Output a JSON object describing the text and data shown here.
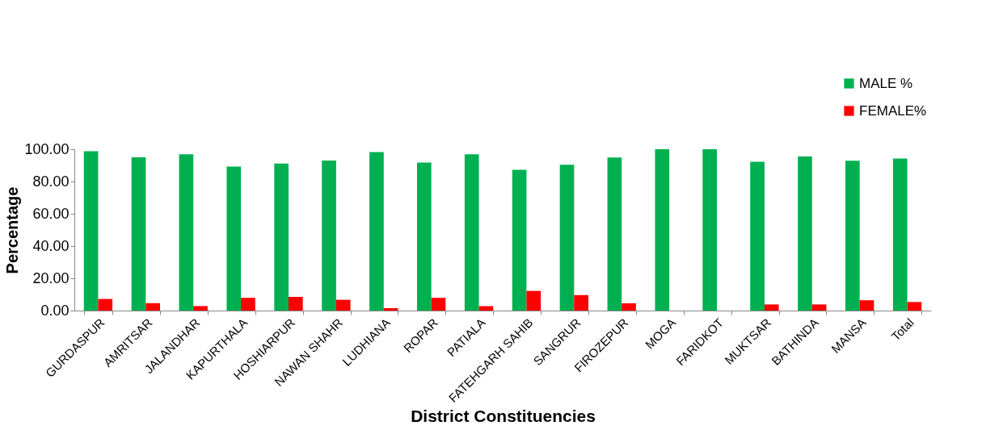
{
  "chart_data": {
    "type": "bar",
    "xlabel": "District Constituencies",
    "ylabel": "Percentage",
    "categories": [
      "GURDASPUR",
      "AMRITSAR",
      "JALANDHAR",
      "KAPURTHALA",
      "HOSHIARPUR",
      "NAWAN SHAHR",
      "LUDHIANA",
      "ROPAR",
      "PATIALA",
      "FATEHGARH SAHIB",
      "SANGRUR",
      "FIROZEPUR",
      "MOGA",
      "FARIDKOT",
      "MUKTSAR",
      "BATHINDA",
      "MANSA",
      "Total"
    ],
    "series": [
      {
        "name": "MALE %",
        "color": "#00b050",
        "values": [
          98.7,
          95.0,
          96.9,
          89.3,
          91.1,
          93.0,
          98.2,
          91.7,
          96.9,
          87.2,
          90.4,
          94.9,
          100,
          100,
          92.3,
          95.5,
          92.9,
          94.2
        ]
      },
      {
        "name": "FEMALE%",
        "color": "#ff0000",
        "values": [
          7.2,
          4.6,
          2.8,
          7.9,
          8.5,
          6.7,
          1.5,
          7.9,
          2.7,
          12.2,
          9.6,
          4.5,
          0,
          0,
          3.8,
          3.8,
          6.4,
          5.3
        ]
      }
    ],
    "ylim": [
      0,
      100
    ],
    "yticks": [
      {
        "value": 0,
        "label": "0.00"
      },
      {
        "value": 20,
        "label": "20.00"
      },
      {
        "value": 40,
        "label": "40.00"
      },
      {
        "value": 60,
        "label": "60.00"
      },
      {
        "value": 80,
        "label": "80.00"
      },
      {
        "value": 100,
        "label": "100.00"
      }
    ],
    "grid": false,
    "legend": "top right"
  }
}
